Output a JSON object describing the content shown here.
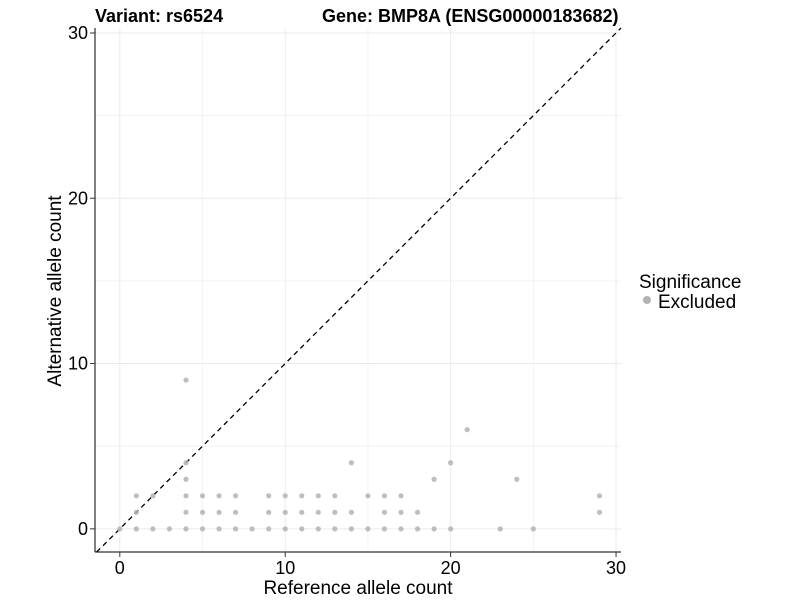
{
  "chart_data": {
    "type": "scatter",
    "title_left": "Variant: rs6524",
    "title_right": "Gene: BMP8A (ENSG00000183682)",
    "xlabel": "Reference allele count",
    "ylabel": "Alternative allele count",
    "xlim": [
      -1.5,
      30.3
    ],
    "ylim": [
      -1.4,
      30.3
    ],
    "x_ticks": [
      0,
      10,
      20,
      30
    ],
    "y_ticks": [
      0,
      10,
      20,
      30
    ],
    "x_tick_labels": [
      "0",
      "10",
      "20",
      "30"
    ],
    "y_tick_labels": [
      "0",
      "10",
      "20",
      "30"
    ],
    "grid": true,
    "reference_line": "y = x",
    "legend": {
      "title": "Significance",
      "entries": [
        "Excluded"
      ],
      "placement": "right"
    },
    "point_color": "#b3b3b3",
    "series": [
      {
        "name": "Excluded",
        "points": [
          [
            0,
            0
          ],
          [
            1,
            0
          ],
          [
            2,
            0
          ],
          [
            3,
            0
          ],
          [
            4,
            0
          ],
          [
            5,
            0
          ],
          [
            6,
            0
          ],
          [
            7,
            0
          ],
          [
            8,
            0
          ],
          [
            9,
            0
          ],
          [
            10,
            0
          ],
          [
            11,
            0
          ],
          [
            12,
            0
          ],
          [
            13,
            0
          ],
          [
            14,
            0
          ],
          [
            15,
            0
          ],
          [
            16,
            0
          ],
          [
            17,
            0
          ],
          [
            18,
            0
          ],
          [
            19,
            0
          ],
          [
            20,
            0
          ],
          [
            23,
            0
          ],
          [
            25,
            0
          ],
          [
            1,
            1
          ],
          [
            4,
            1
          ],
          [
            5,
            1
          ],
          [
            6,
            1
          ],
          [
            7,
            1
          ],
          [
            9,
            1
          ],
          [
            10,
            1
          ],
          [
            11,
            1
          ],
          [
            12,
            1
          ],
          [
            13,
            1
          ],
          [
            14,
            1
          ],
          [
            16,
            1
          ],
          [
            17,
            1
          ],
          [
            18,
            1
          ],
          [
            29,
            1
          ],
          [
            1,
            2
          ],
          [
            2,
            2
          ],
          [
            4,
            2
          ],
          [
            5,
            2
          ],
          [
            6,
            2
          ],
          [
            7,
            2
          ],
          [
            9,
            2
          ],
          [
            10,
            2
          ],
          [
            11,
            2
          ],
          [
            12,
            2
          ],
          [
            13,
            2
          ],
          [
            15,
            2
          ],
          [
            16,
            2
          ],
          [
            17,
            2
          ],
          [
            29,
            2
          ],
          [
            4,
            3
          ],
          [
            19,
            3
          ],
          [
            24,
            3
          ],
          [
            4,
            4
          ],
          [
            14,
            4
          ],
          [
            20,
            4
          ],
          [
            21,
            6
          ],
          [
            4,
            9
          ]
        ]
      }
    ]
  }
}
